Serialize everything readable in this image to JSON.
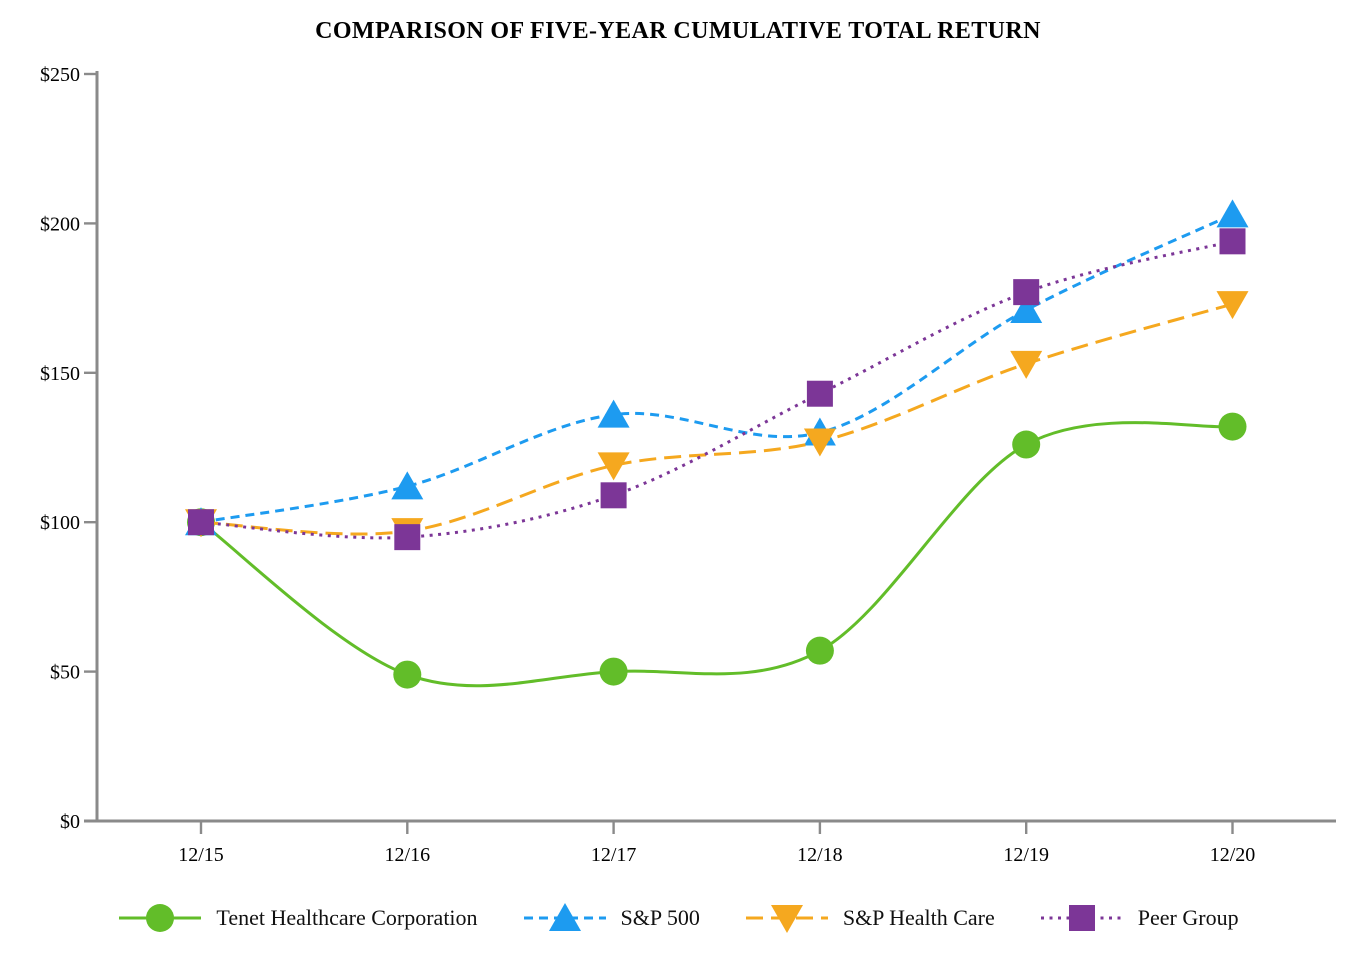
{
  "chart_data": {
    "type": "line",
    "title": "COMPARISON OF FIVE-YEAR CUMULATIVE TOTAL RETURN",
    "categories": [
      "12/15",
      "12/16",
      "12/17",
      "12/18",
      "12/19",
      "12/20"
    ],
    "series": [
      {
        "name": "Tenet Healthcare Corporation",
        "color": "#62bd29",
        "marker": "circle",
        "line_style": "solid",
        "values": [
          100,
          49,
          50,
          57,
          126,
          132
        ]
      },
      {
        "name": "S&P 500",
        "color": "#1d9bf0",
        "marker": "triangle-up",
        "line_style": "dashed",
        "values": [
          100,
          112,
          136,
          130,
          171,
          203
        ]
      },
      {
        "name": "S&P Health Care",
        "color": "#f5a81f",
        "marker": "triangle-down",
        "line_style": "long-dash",
        "values": [
          100,
          97,
          119,
          127,
          153,
          173
        ]
      },
      {
        "name": "Peer Group",
        "color": "#7c3697",
        "marker": "square",
        "line_style": "dotted",
        "values": [
          100,
          95,
          109,
          143,
          177,
          194
        ]
      }
    ],
    "y_ticks": [
      {
        "value": 0,
        "label": "$0"
      },
      {
        "value": 50,
        "label": "$50"
      },
      {
        "value": 100,
        "label": "$100"
      },
      {
        "value": 150,
        "label": "$150"
      },
      {
        "value": 200,
        "label": "$200"
      },
      {
        "value": 250,
        "label": "$250"
      }
    ],
    "ylim": [
      0,
      250
    ],
    "xlabel": "",
    "ylabel": "",
    "grid": false,
    "legend_position": "bottom",
    "axis_color": "#8a8a8a"
  }
}
